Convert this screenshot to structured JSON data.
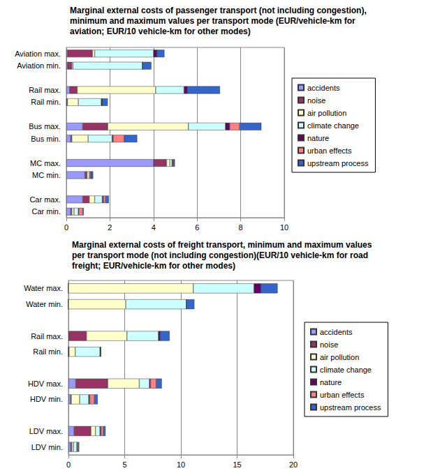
{
  "chart_data": [
    {
      "type": "bar",
      "title": "Marginal external costs of passenger transport (not including congestion),\nminimum and maximum values per transport mode (EUR/vehicle-km for\naviation; EUR/10 vehicle-km for other modes)",
      "orientation": "horizontal",
      "stacked": true,
      "grid": true,
      "legend": "right",
      "categories": [
        "Aviation max.",
        "Aviation min.",
        null,
        "Rail max.",
        "Rail min.",
        null,
        "Bus max.",
        "Bus min.",
        null,
        "MC max.",
        "MC min.",
        null,
        "Car max.",
        "Car min."
      ],
      "xlim": [
        0,
        10
      ],
      "xticks": [
        0,
        2,
        4,
        6,
        8,
        10
      ],
      "series": [
        {
          "name": "accidents",
          "color": "#9999ff",
          "values": [
            0.05,
            0.05,
            null,
            0.15,
            0.02,
            null,
            0.75,
            0.2,
            null,
            4.0,
            0.85,
            null,
            0.75,
            0.2
          ]
        },
        {
          "name": "noise",
          "color": "#993366",
          "values": [
            1.15,
            0.2,
            null,
            0.35,
            0.03,
            null,
            1.15,
            0.05,
            null,
            0.6,
            0.1,
            null,
            0.3,
            0.05
          ]
        },
        {
          "name": "air pollution",
          "color": "#ffffcc",
          "values": [
            0.1,
            0.05,
            null,
            3.6,
            0.5,
            null,
            3.7,
            0.75,
            null,
            0.15,
            0.1,
            null,
            0.25,
            0.1
          ]
        },
        {
          "name": "climate change",
          "color": "#ccffff",
          "values": [
            2.7,
            3.2,
            null,
            1.3,
            1.05,
            null,
            1.7,
            1.1,
            null,
            0.1,
            0.05,
            null,
            0.35,
            0.2
          ]
        },
        {
          "name": "nature",
          "color": "#660066",
          "values": [
            0.15,
            0,
            null,
            0.15,
            0.05,
            null,
            0.2,
            0.05,
            null,
            0.05,
            0.05,
            null,
            0.05,
            0.02
          ]
        },
        {
          "name": "urban effects",
          "color": "#ff8080",
          "values": [
            0,
            0,
            null,
            0,
            0,
            null,
            0.45,
            0.5,
            null,
            0.03,
            0.03,
            null,
            0.1,
            0.18
          ]
        },
        {
          "name": "upstream process",
          "color": "#3366cc",
          "values": [
            0.35,
            0.4,
            null,
            1.5,
            0.25,
            null,
            1.0,
            0.6,
            null,
            0.05,
            0.05,
            null,
            0.15,
            0.05
          ]
        }
      ]
    },
    {
      "type": "bar",
      "title": "Marginal external costs of freight transport, minimum and maximum values\nper transport mode (not including congestion)(EUR/10 vehicle-km for road\nfreight; EUR/vehicle-km for other modes)",
      "orientation": "horizontal",
      "stacked": true,
      "grid": true,
      "legend": "right",
      "categories": [
        "Water max.",
        "Water min.",
        null,
        "Rail max.",
        "Rail min.",
        null,
        "HDV max.",
        "HDV min.",
        null,
        "LDV max.",
        "LDV min."
      ],
      "xlim": [
        0,
        20
      ],
      "xticks": [
        0,
        5,
        10,
        15,
        20
      ],
      "series": [
        {
          "name": "accidents",
          "color": "#9999ff",
          "values": [
            0,
            0,
            null,
            0.05,
            0,
            null,
            0.65,
            0.2,
            null,
            0.5,
            0.2
          ]
        },
        {
          "name": "noise",
          "color": "#993366",
          "values": [
            0,
            0,
            null,
            1.55,
            0.05,
            null,
            2.85,
            0.05,
            null,
            1.5,
            0.1
          ]
        },
        {
          "name": "air pollution",
          "color": "#ffffcc",
          "values": [
            11.1,
            5.1,
            null,
            3.6,
            0.55,
            null,
            2.8,
            0.75,
            null,
            0.4,
            0.15
          ]
        },
        {
          "name": "climate change",
          "color": "#ccffff",
          "values": [
            5.4,
            5.4,
            null,
            2.8,
            2.2,
            null,
            0.9,
            0.8,
            null,
            0.4,
            0.3
          ]
        },
        {
          "name": "nature",
          "color": "#660066",
          "values": [
            0.6,
            0,
            null,
            0.15,
            0.05,
            null,
            0.1,
            0.1,
            null,
            0.1,
            0.05
          ]
        },
        {
          "name": "urban effects",
          "color": "#ff8080",
          "values": [
            0,
            0,
            null,
            0,
            0,
            null,
            0.5,
            0.4,
            null,
            0.2,
            0.1
          ]
        },
        {
          "name": "upstream process",
          "color": "#3366cc",
          "values": [
            1.5,
            0.7,
            null,
            0.85,
            0.05,
            null,
            0.5,
            0.3,
            null,
            0.2,
            0.05
          ]
        }
      ]
    }
  ]
}
